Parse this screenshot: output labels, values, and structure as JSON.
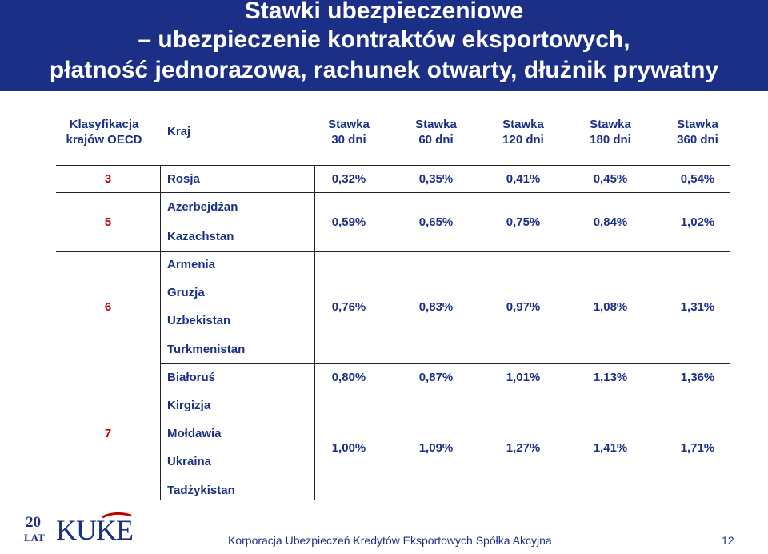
{
  "title": {
    "line1": "Stawki ubezpieczeniowe",
    "line2": "– ubezpieczenie kontraktów eksportowych,",
    "line3": "płatność jednorazowa, rachunek otwarty, dłużnik prywatny"
  },
  "table": {
    "headers": {
      "class_line1": "Klasyfikacja",
      "class_line2": "krajów OECD",
      "country": "Kraj",
      "rates": [
        {
          "l1": "Stawka",
          "l2": "30 dni"
        },
        {
          "l1": "Stawka",
          "l2": "60 dni"
        },
        {
          "l1": "Stawka",
          "l2": "120 dni"
        },
        {
          "l1": "Stawka",
          "l2": "180 dni"
        },
        {
          "l1": "Stawka",
          "l2": "360 dni"
        }
      ]
    },
    "groups": [
      {
        "class": "3",
        "countries": [
          "Rosja"
        ],
        "rates": [
          "0,32%",
          "0,35%",
          "0,41%",
          "0,45%",
          "0,54%"
        ]
      },
      {
        "class": "5",
        "countries": [
          "Azerbejdżan",
          "Kazachstan"
        ],
        "rates": [
          "0,59%",
          "0,65%",
          "0,75%",
          "0,84%",
          "1,02%"
        ]
      },
      {
        "class": "6",
        "countries": [
          "Armenia",
          "Gruzja",
          "Uzbekistan",
          "Turkmenistan"
        ],
        "rates": [
          "0,76%",
          "0,83%",
          "0,97%",
          "1,08%",
          "1,31%"
        ]
      },
      {
        "class": "",
        "countries": [
          "Białoruś"
        ],
        "rates": [
          "0,80%",
          "0,87%",
          "1,01%",
          "1,13%",
          "1,36%"
        ]
      },
      {
        "class": "7",
        "countries": [
          "Kirgizja",
          "Mołdawia",
          "Ukraina",
          "Tadżykistan"
        ],
        "rates": [
          "1,00%",
          "1,09%",
          "1,27%",
          "1,41%",
          "1,71%"
        ]
      }
    ]
  },
  "footer": {
    "logo_number": "20",
    "logo_word": "LAT",
    "logo_brand": "KUKE",
    "company": "Korporacja Ubezpieczeń Kredytów Eksportowych Spółka Akcyjna",
    "page": "12"
  },
  "colors": {
    "header_bg": "#1b2f86",
    "text_blue": "#1b2f86",
    "class_red": "#c00000"
  }
}
